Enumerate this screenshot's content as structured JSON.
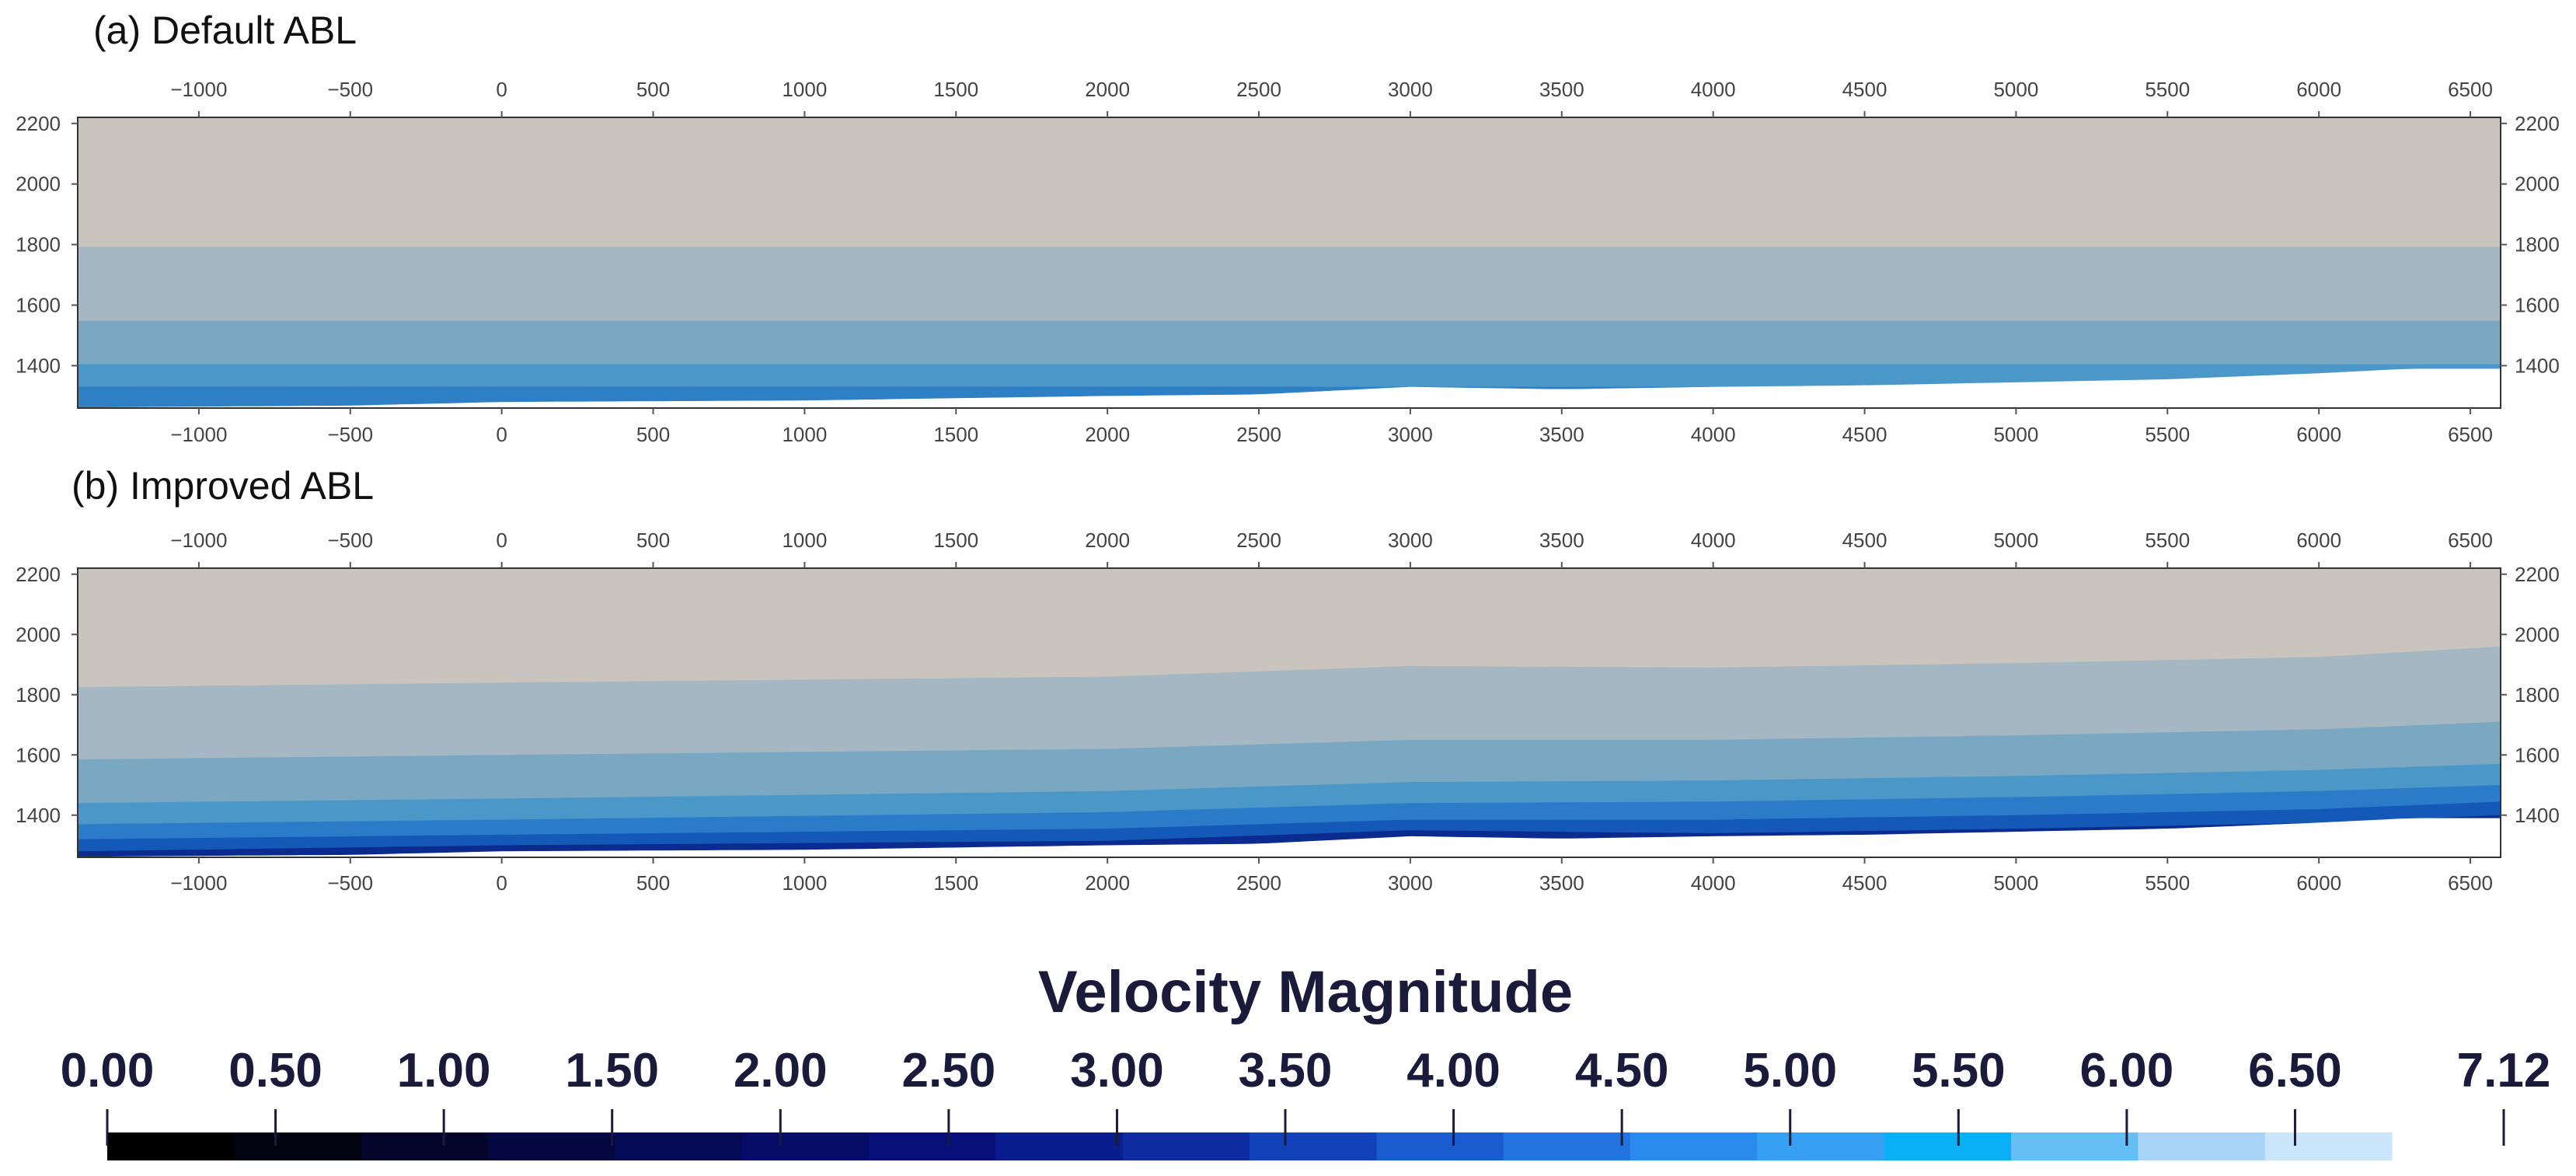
{
  "chart_data": {
    "type": "contour",
    "x_ticks": [
      -1000,
      -500,
      0,
      500,
      1000,
      1500,
      2000,
      2500,
      3000,
      3500,
      4000,
      4500,
      5000,
      5500,
      6000,
      6500
    ],
    "y_ticks": [
      1400,
      1600,
      1800,
      2000,
      2200
    ],
    "xlim": [
      -1400,
      6600
    ],
    "ylim": [
      1260,
      2220
    ],
    "terrain_profile": {
      "x": [
        -1400,
        -500,
        0,
        1000,
        2000,
        2500,
        3000,
        3500,
        4000,
        4500,
        5000,
        5500,
        6000,
        6300,
        6600
      ],
      "y": [
        1262,
        1268,
        1280,
        1285,
        1300,
        1305,
        1330,
        1322,
        1330,
        1335,
        1345,
        1355,
        1375,
        1390,
        1390
      ]
    },
    "panels": [
      {
        "title": "(a) Default ABL",
        "bands": [
          {
            "lower_velocity": 3.5,
            "color": "#2f7fc5",
            "top": {
              "x": [
                -1400,
                6600
              ],
              "y": [
                1330,
                1330
              ]
            }
          },
          {
            "lower_velocity": 4.0,
            "color": "#4a97c8",
            "top": {
              "x": [
                -1400,
                6600
              ],
              "y": [
                1405,
                1405
              ]
            }
          },
          {
            "lower_velocity": 5.5,
            "color": "#7aa7c2",
            "top": {
              "x": [
                -1400,
                6600
              ],
              "y": [
                1548,
                1548
              ]
            }
          },
          {
            "lower_velocity": 6.5,
            "color": "#a5b7c2",
            "top": {
              "x": [
                -1400,
                6600
              ],
              "y": [
                1792,
                1792
              ]
            }
          },
          {
            "lower_velocity": 7.0,
            "color": "#c9c4bd",
            "top": {
              "x": [
                -1400,
                6600
              ],
              "y": [
                2220,
                2220
              ]
            }
          }
        ]
      },
      {
        "title": "(b) Improved ABL",
        "bands": [
          {
            "lower_velocity": 2.5,
            "color": "#0b2c8e",
            "top": {
              "x": [
                -1400,
                0,
                2000,
                3000,
                4000,
                5000,
                6000,
                6600
              ],
              "y": [
                1280,
                1300,
                1315,
                1350,
                1340,
                1355,
                1375,
                1400
              ]
            }
          },
          {
            "lower_velocity": 3.0,
            "color": "#1559b8",
            "top": {
              "x": [
                -1400,
                0,
                2000,
                3000,
                4000,
                5000,
                6000,
                6600
              ],
              "y": [
                1320,
                1335,
                1355,
                1385,
                1385,
                1400,
                1420,
                1445
              ]
            }
          },
          {
            "lower_velocity": 3.5,
            "color": "#2a7cc8",
            "top": {
              "x": [
                -1400,
                0,
                2000,
                3000,
                4000,
                5000,
                6000,
                6600
              ],
              "y": [
                1370,
                1385,
                1410,
                1440,
                1445,
                1460,
                1480,
                1500
              ]
            }
          },
          {
            "lower_velocity": 4.0,
            "color": "#4a97c8",
            "top": {
              "x": [
                -1400,
                0,
                2000,
                3000,
                4000,
                5000,
                6000,
                6600
              ],
              "y": [
                1440,
                1455,
                1480,
                1510,
                1515,
                1530,
                1550,
                1570
              ]
            }
          },
          {
            "lower_velocity": 5.0,
            "color": "#7aa7c2",
            "top": {
              "x": [
                -1400,
                0,
                2000,
                3000,
                4000,
                5000,
                6000,
                6600
              ],
              "y": [
                1585,
                1600,
                1620,
                1650,
                1650,
                1665,
                1685,
                1710
              ]
            }
          },
          {
            "lower_velocity": 6.0,
            "color": "#a5b7c2",
            "top": {
              "x": [
                -1400,
                0,
                2000,
                3000,
                4000,
                5000,
                6000,
                6600
              ],
              "y": [
                1825,
                1840,
                1860,
                1895,
                1890,
                1905,
                1925,
                1960
              ]
            }
          },
          {
            "lower_velocity": 7.0,
            "color": "#c9c4bd",
            "top": {
              "x": [
                -1400,
                6600
              ],
              "y": [
                2220,
                2220
              ]
            }
          }
        ]
      }
    ],
    "colorbar": {
      "title": "Velocity Magnitude",
      "min": 0.0,
      "max": 7.12,
      "tick_values": [
        0.0,
        0.5,
        1.0,
        1.5,
        2.0,
        2.5,
        3.0,
        3.5,
        4.0,
        4.5,
        5.0,
        5.5,
        6.0,
        6.5,
        7.12
      ],
      "tick_labels": [
        "0.00",
        "0.50",
        "1.00",
        "1.50",
        "2.00",
        "2.50",
        "3.00",
        "3.50",
        "4.00",
        "4.50",
        "5.00",
        "5.50",
        "6.00",
        "6.50",
        "7.12"
      ],
      "colors": [
        "#000000",
        "#020210",
        "#03052a",
        "#040740",
        "#050a55",
        "#060c66",
        "#071078",
        "#0a1d8c",
        "#0c2ca0",
        "#1142b8",
        "#1a5bcf",
        "#2275e0",
        "#2b8bec",
        "#36a1f3",
        "#0ab0f5",
        "#64bff4",
        "#a7d4f6",
        "#c9e6fa"
      ]
    }
  }
}
